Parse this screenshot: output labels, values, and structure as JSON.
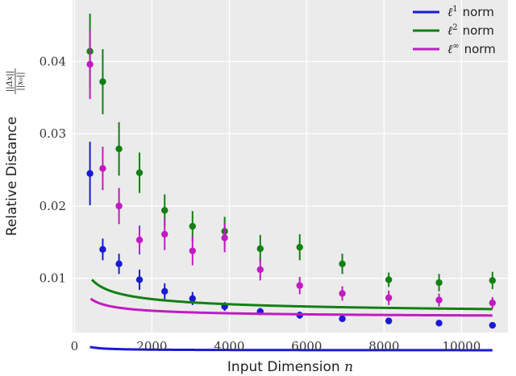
{
  "chart_data": {
    "type": "line",
    "xlabel": "Input Dimension",
    "xlabel_var": "n",
    "ylabel": "Relative Distance",
    "ylabel_fraction": {
      "numerator": "||Δx||",
      "denominator": "||x₀||"
    },
    "xlim": [
      -50,
      11200
    ],
    "ylim": [
      0.0025,
      0.0485
    ],
    "xticks": [
      0,
      2000,
      4000,
      6000,
      8000,
      10000
    ],
    "xtick_labels": [
      "0",
      "2000",
      "4000",
      "6000",
      "8000",
      "10000"
    ],
    "yticks": [
      0.01,
      0.02,
      0.03,
      0.04
    ],
    "ytick_labels": [
      "0.01",
      "0.02",
      "0.03",
      "0.04"
    ],
    "grid": true,
    "legend_position": "top-right",
    "background": "#ebebeb",
    "x": [
      400,
      730,
      1150,
      1680,
      2330,
      3050,
      3880,
      4800,
      5820,
      6920,
      8120,
      9420,
      10800
    ],
    "series": [
      {
        "name": "norm",
        "math_base": "ℓ",
        "math_sup": "1",
        "color": "#1a1ad6",
        "points": [
          0.0245,
          0.014,
          0.012,
          0.0098,
          0.0082,
          0.0072,
          0.0061,
          0.0054,
          0.0049,
          0.0044,
          0.0041,
          0.0038,
          0.0035
        ],
        "errors": [
          0.0044,
          0.0015,
          0.0014,
          0.0014,
          0.0011,
          0.0009,
          0.0006,
          0.0005,
          0.0005,
          0.0004,
          0.0003,
          0.0003,
          0.0003
        ],
        "fit": {
          "x_start": 400,
          "a": 3.8e-05,
          "b": 0.00047,
          "c": 400,
          "p": 1.0
        }
      },
      {
        "name": "norm",
        "math_base": "ℓ",
        "math_sup": "2",
        "color": "#128012",
        "points": [
          0.0414,
          0.0372,
          0.0279,
          0.0246,
          0.0194,
          0.0172,
          0.0165,
          0.0141,
          0.0143,
          0.012,
          0.0098,
          0.0094,
          0.0097
        ],
        "errors": [
          0.0052,
          0.0045,
          0.0037,
          0.0028,
          0.0022,
          0.0021,
          0.002,
          0.0019,
          0.0018,
          0.0014,
          0.001,
          0.0012,
          0.0012
        ],
        "fit": {
          "x_start": 450,
          "a": 0.0047,
          "b": 0.005,
          "c": 470,
          "p": 0.5
        }
      },
      {
        "name": "norm",
        "math_base": "ℓ",
        "math_sup": "∞",
        "color": "#c21bc2",
        "points": [
          0.0396,
          0.0252,
          0.02,
          0.0153,
          0.0161,
          0.0138,
          0.0156,
          0.0112,
          0.009,
          0.0079,
          0.0073,
          0.007,
          0.0066
        ],
        "errors": [
          0.0048,
          0.003,
          0.0025,
          0.002,
          0.0022,
          0.002,
          0.002,
          0.0015,
          0.0012,
          0.001,
          0.001,
          0.0009,
          0.0008
        ],
        "fit": {
          "x_start": 420,
          "a": 0.0045,
          "b": 0.0021,
          "c": 620,
          "p": 0.62
        }
      }
    ]
  }
}
